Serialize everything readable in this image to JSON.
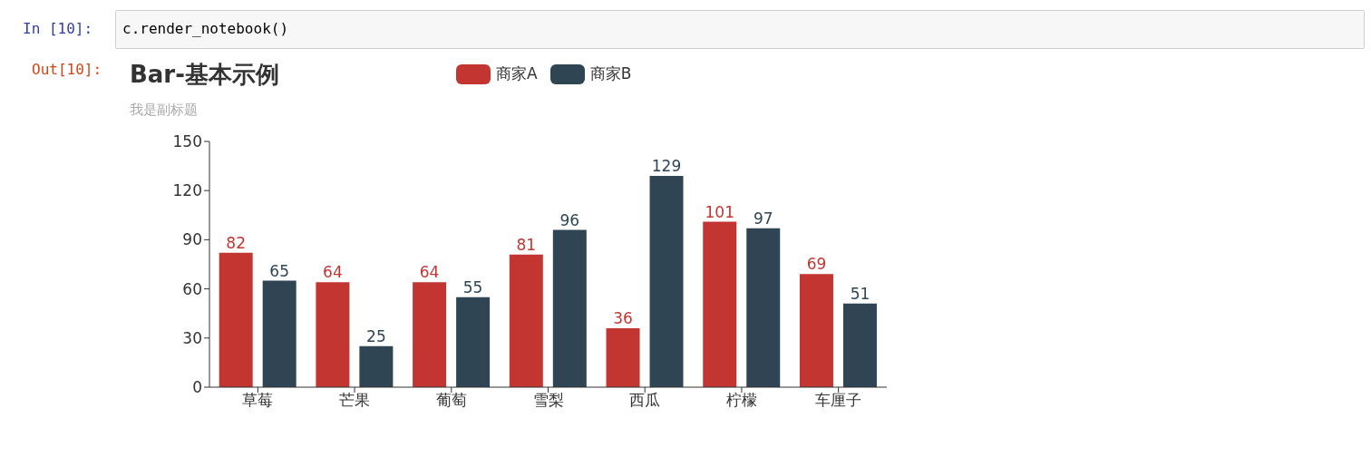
{
  "chart_data": {
    "type": "bar",
    "title": "Bar-基本示例",
    "subtitle": "我是副标题",
    "categories": [
      "草莓",
      "芒果",
      "葡萄",
      "雪梨",
      "西瓜",
      "柠檬",
      "车厘子"
    ],
    "series": [
      {
        "name": "商家A",
        "color": "#c23531",
        "values": [
          82,
          64,
          64,
          81,
          36,
          101,
          69
        ]
      },
      {
        "name": "商家B",
        "color": "#2f4554",
        "values": [
          65,
          25,
          55,
          96,
          129,
          97,
          51
        ]
      }
    ],
    "ylim": [
      0,
      150
    ],
    "yticks": [
      0,
      30,
      60,
      90,
      120,
      150
    ],
    "grid": false,
    "legend": "top",
    "data_labels": true,
    "annotations": [
      "In  [10]:",
      "c.render_notebook()",
      "Out[10]:"
    ]
  }
}
